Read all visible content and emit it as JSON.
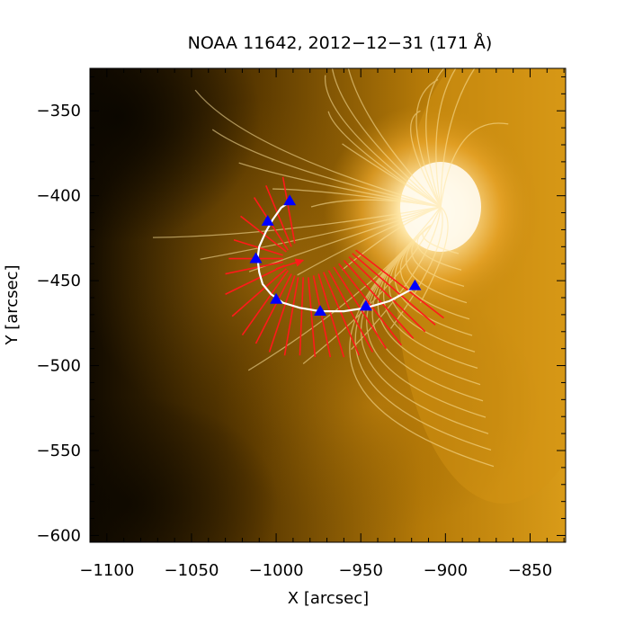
{
  "title": "NOAA 11642, 2012−12−31 (171 Å)",
  "xlabel": "X [arcsec]",
  "ylabel": "Y [arcsec]",
  "x_ticks": [
    {
      "value": -1100,
      "label": "−1100"
    },
    {
      "value": -1050,
      "label": "−1050"
    },
    {
      "value": -1000,
      "label": "−1000"
    },
    {
      "value": -950,
      "label": "−950"
    },
    {
      "value": -900,
      "label": "−900"
    },
    {
      "value": -850,
      "label": "−850"
    }
  ],
  "y_ticks": [
    {
      "value": -350,
      "label": "−350"
    },
    {
      "value": -400,
      "label": "−400"
    },
    {
      "value": -450,
      "label": "−450"
    },
    {
      "value": -500,
      "label": "−500"
    },
    {
      "value": -550,
      "label": "−550"
    },
    {
      "value": -600,
      "label": "−600"
    }
  ],
  "xlim": [
    -1110,
    -829
  ],
  "ylim": [
    -604,
    -325
  ],
  "colors": {
    "image_bright": "#fff6dc",
    "image_mid": "#d89a14",
    "image_dark": "#1a1000",
    "slit_lines": "#ff1a1a",
    "loop_path": "#ffffff",
    "markers": "#0000ff"
  },
  "loop_path": [
    [
      -991,
      -403
    ],
    [
      -997,
      -407
    ],
    [
      -1002,
      -414
    ],
    [
      -1006,
      -421
    ],
    [
      -1010,
      -430
    ],
    [
      -1011,
      -437
    ],
    [
      -1010,
      -445
    ],
    [
      -1008,
      -452
    ],
    [
      -1003,
      -458
    ],
    [
      -996,
      -463
    ],
    [
      -986,
      -466
    ],
    [
      -974,
      -468
    ],
    [
      -960,
      -468
    ],
    [
      -947,
      -466
    ],
    [
      -933,
      -462
    ],
    [
      -918,
      -454
    ]
  ],
  "markers": [
    [
      -992,
      -403
    ],
    [
      -1005,
      -415
    ],
    [
      -1012,
      -437
    ],
    [
      -1000,
      -461
    ],
    [
      -974,
      -468
    ],
    [
      -947,
      -465
    ],
    [
      -918,
      -453
    ]
  ],
  "slit_center": [
    -984,
    -438
  ],
  "slits": [
    {
      "inner": [
        -989,
        -428
      ],
      "outer": [
        -996,
        -389
      ]
    },
    {
      "inner": [
        -991,
        -430
      ],
      "outer": [
        -1006,
        -394
      ]
    },
    {
      "inner": [
        -993,
        -432
      ],
      "outer": [
        -1013,
        -401
      ]
    },
    {
      "inner": [
        -994,
        -433
      ],
      "outer": [
        -1021,
        -412
      ]
    },
    {
      "inner": [
        -996,
        -435
      ],
      "outer": [
        -1025,
        -426
      ]
    },
    {
      "inner": [
        -996,
        -437
      ],
      "outer": [
        -1028,
        -437
      ]
    },
    {
      "inner": [
        -996,
        -439
      ],
      "outer": [
        -1030,
        -446
      ]
    },
    {
      "inner": [
        -995,
        -441
      ],
      "outer": [
        -1030,
        -458
      ]
    },
    {
      "inner": [
        -994,
        -443
      ],
      "outer": [
        -1026,
        -471
      ]
    },
    {
      "inner": [
        -993,
        -444
      ],
      "outer": [
        -1020,
        -482
      ]
    },
    {
      "inner": [
        -991,
        -446
      ],
      "outer": [
        -1012,
        -487
      ]
    },
    {
      "inner": [
        -989,
        -447
      ],
      "outer": [
        -1004,
        -492
      ]
    },
    {
      "inner": [
        -987,
        -448
      ],
      "outer": [
        -995,
        -494
      ]
    },
    {
      "inner": [
        -984,
        -448
      ],
      "outer": [
        -986,
        -494
      ]
    },
    {
      "inner": [
        -981,
        -448
      ],
      "outer": [
        -977,
        -495
      ]
    },
    {
      "inner": [
        -978,
        -447
      ],
      "outer": [
        -968,
        -495
      ]
    },
    {
      "inner": [
        -975,
        -446
      ],
      "outer": [
        -960,
        -495
      ]
    },
    {
      "inner": [
        -972,
        -445
      ],
      "outer": [
        -951,
        -494
      ]
    },
    {
      "inner": [
        -969,
        -444
      ],
      "outer": [
        -943,
        -492
      ]
    },
    {
      "inner": [
        -966,
        -442
      ],
      "outer": [
        -935,
        -490
      ]
    },
    {
      "inner": [
        -963,
        -440
      ],
      "outer": [
        -926,
        -488
      ]
    },
    {
      "inner": [
        -960,
        -438
      ],
      "outer": [
        -919,
        -484
      ]
    },
    {
      "inner": [
        -957,
        -436
      ],
      "outer": [
        -912,
        -480
      ]
    },
    {
      "inner": [
        -955,
        -434
      ],
      "outer": [
        -906,
        -476
      ]
    },
    {
      "inner": [
        -953,
        -432
      ],
      "outer": [
        -901,
        -472
      ]
    }
  ]
}
